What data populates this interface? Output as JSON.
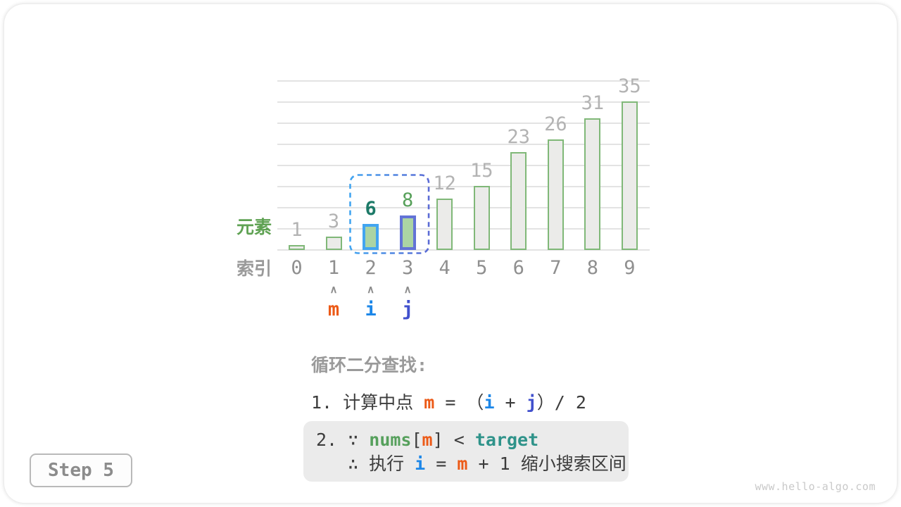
{
  "page": {
    "step_label": "Step 5",
    "site": "www.hello-algo.com"
  },
  "colors": {
    "text": "#3c3c3c",
    "gray_label": "#9a9a9a",
    "value_label": "#b3b3b3",
    "index_label": "#8f8f8f",
    "bar_fill": "#ebebe9",
    "bar_border": "#80b878",
    "highlight_fill": "#abd4a4",
    "m": "#ec5a17",
    "i": "#1d87e8",
    "j": "#4150cd",
    "nums": "#56a05c",
    "target": "#2f938a",
    "window_blue": "#42a5f0",
    "window_indigo": "#5b6bd5"
  },
  "chart_data": {
    "type": "bar",
    "title": "",
    "categories": [
      "0",
      "1",
      "2",
      "3",
      "4",
      "5",
      "6",
      "7",
      "8",
      "9"
    ],
    "values": [
      1,
      3,
      6,
      8,
      12,
      15,
      23,
      26,
      31,
      35
    ],
    "ylabel_left": "元素",
    "xlabel_left": "索引",
    "ylim": [
      0,
      40
    ],
    "grid_step": 5,
    "grid_on": true,
    "highlights": [
      {
        "index": 2,
        "border": "#42a5f0",
        "fill": "#abd4a4",
        "label_color": "#1d7a68",
        "label_bold": true
      },
      {
        "index": 3,
        "border": "#6273d6",
        "fill": "#abd4a4",
        "label_color": "#57a05a",
        "label_bold": false
      }
    ],
    "dashed_window": {
      "from": 2,
      "to": 3
    },
    "pointers": [
      {
        "label": "m",
        "index": 1,
        "color": "#ec5a17"
      },
      {
        "label": "i",
        "index": 2,
        "color": "#1d87e8"
      },
      {
        "label": "j",
        "index": 3,
        "color": "#4150cd"
      }
    ]
  },
  "explanation": {
    "title": "循环二分查找:",
    "line1_segments": [
      {
        "t": "1. 计算中点 ",
        "c": "text"
      },
      {
        "t": "m",
        "c": "m",
        "bold": true
      },
      {
        "t": " = （",
        "c": "text"
      },
      {
        "t": "i",
        "c": "i",
        "bold": true
      },
      {
        "t": " + ",
        "c": "text"
      },
      {
        "t": "j",
        "c": "j",
        "bold": true
      },
      {
        "t": "）/ 2",
        "c": "text"
      }
    ],
    "box_lines": [
      {
        "indent": false,
        "segments": [
          {
            "t": "2. ∵ ",
            "c": "text"
          },
          {
            "t": "nums",
            "c": "nums",
            "bold": true
          },
          {
            "t": "[",
            "c": "text"
          },
          {
            "t": "m",
            "c": "m",
            "bold": true
          },
          {
            "t": "] < ",
            "c": "text"
          },
          {
            "t": "target",
            "c": "target",
            "bold": true
          }
        ]
      },
      {
        "indent": true,
        "segments": [
          {
            "t": "∴ 执行 ",
            "c": "text"
          },
          {
            "t": "i",
            "c": "i",
            "bold": true
          },
          {
            "t": " = ",
            "c": "text"
          },
          {
            "t": "m",
            "c": "m",
            "bold": true
          },
          {
            "t": " + 1 缩小搜索区间",
            "c": "text"
          }
        ]
      }
    ]
  }
}
